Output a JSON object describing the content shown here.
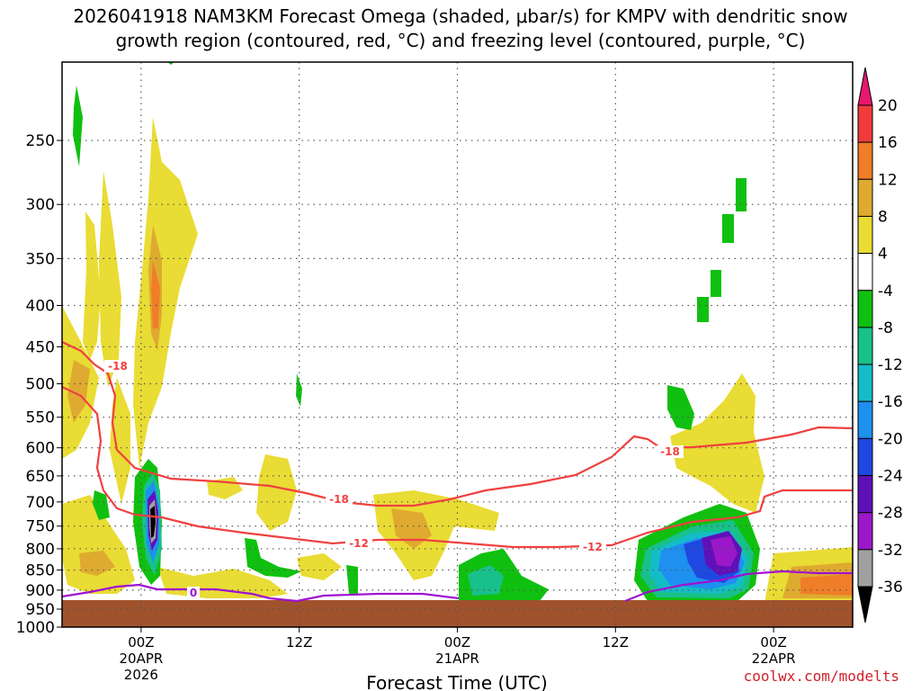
{
  "title_line1": "2026041918 NAM3KM Forecast Omega (shaded, μbar/s) for KMPV with dendritic snow",
  "title_line2": "growth region (contoured, red, °C) and freezing level (contoured, purple, °C)",
  "credit": "coolwx.com/modelts",
  "chart_data": {
    "type": "heatmap",
    "xlabel": "Forecast Time (UTC)",
    "x_ticks": [
      {
        "label": "00Z",
        "sub": [
          "20APR",
          "2026"
        ],
        "hour": 6
      },
      {
        "label": "12Z",
        "sub": [],
        "hour": 18
      },
      {
        "label": "00Z",
        "sub": [
          "21APR"
        ],
        "hour": 30
      },
      {
        "label": "12Z",
        "sub": [],
        "hour": 42
      },
      {
        "label": "00Z",
        "sub": [
          "22APR"
        ],
        "hour": 54
      }
    ],
    "xlim_hours": [
      0,
      60
    ],
    "y_ticks": [
      250,
      300,
      350,
      400,
      450,
      500,
      550,
      600,
      650,
      700,
      750,
      800,
      850,
      900,
      950,
      1000
    ],
    "ylim_hpa": [
      200,
      1000
    ],
    "y_scale": "log-pressure",
    "colorbar_levels": [
      20,
      16,
      12,
      8,
      4,
      -4,
      -8,
      -12,
      -16,
      -20,
      -24,
      -28,
      -32,
      -36
    ],
    "colorbar_colors": [
      "#e8186f",
      "#f03c3c",
      "#f07d28",
      "#dfaa30",
      "#e9dc34",
      "#ffffff",
      "#10c010",
      "#18c08a",
      "#14bcc8",
      "#1e90f0",
      "#1e48e0",
      "#6010b8",
      "#9a18c8",
      "#a0a0a0",
      "#000000"
    ],
    "contours": {
      "snow_growth_red": [
        "-18",
        "-12",
        "-18"
      ],
      "freezing_purple": [
        "0"
      ]
    },
    "ground_color": "#a0522d",
    "grid": true
  }
}
